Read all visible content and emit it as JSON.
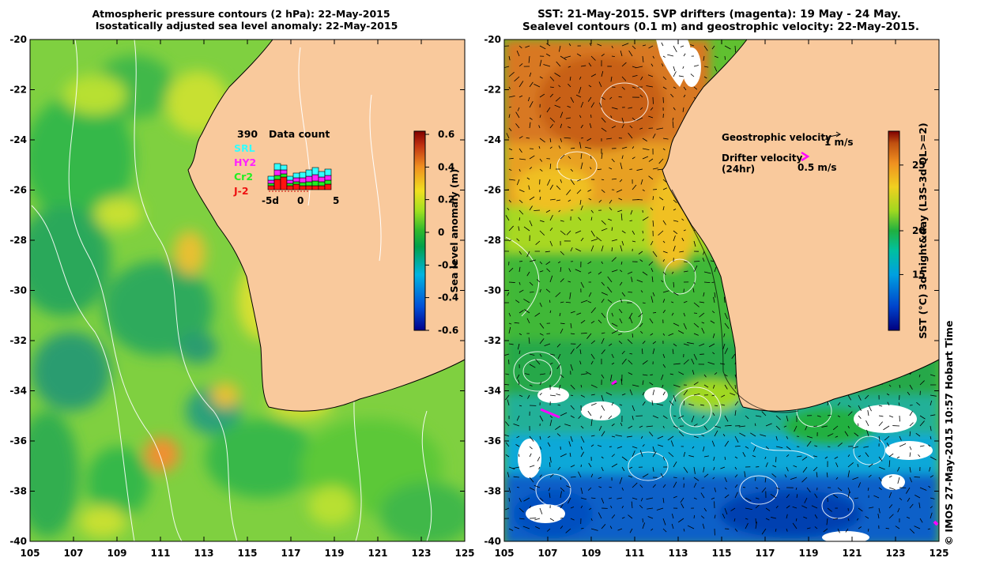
{
  "left_panel": {
    "title_line1": "Atmospheric pressure contours (2 hPa): 22-May-2015",
    "title_line2": "Isostatically adjusted sea level anomaly: 22-May-2015",
    "colorbar_label": "Sea level anomaly (m)",
    "colorbar_ticks": [
      "0.6",
      "0.4",
      "0.2",
      "0",
      "-0.2",
      "-0.4",
      "-0.6"
    ],
    "data_count": {
      "title": "Data count",
      "total": "390",
      "missions": [
        {
          "name": "SRL",
          "color": "#33ffff"
        },
        {
          "name": "HY2",
          "color": "#ff22ff"
        },
        {
          "name": "Cr2",
          "color": "#22ee22"
        },
        {
          "name": "J-2",
          "color": "#ff1111"
        }
      ],
      "x_ticks": [
        "-5d",
        "0",
        "5"
      ]
    }
  },
  "right_panel": {
    "title_line1": "SST: 21-May-2015. SVP drifters (magenta): 19 May - 24 May.",
    "title_line2": "Sealevel contours (0.1 m) and geostrophic velocity: 22-May-2015.",
    "colorbar_label": "SST (°C) 3d night&day (L3S-3d QL>=2)",
    "colorbar_ticks": [
      "25",
      "20",
      "15"
    ],
    "legend": {
      "geo_label": "Geostrophic velocity",
      "geo_scale": "1 m/s",
      "drifter_label": "Drifter velocity",
      "drifter_sub": "(24hr)",
      "drifter_scale": "0.5 m/s"
    }
  },
  "axes": {
    "lon_ticks": [
      "105",
      "107",
      "109",
      "111",
      "113",
      "115",
      "117",
      "119",
      "121",
      "123",
      "125"
    ],
    "lat_ticks": [
      "-20",
      "-22",
      "-24",
      "-26",
      "-28",
      "-30",
      "-32",
      "-34",
      "-36",
      "-38",
      "-40"
    ]
  },
  "credit": "© IMOS 27-May-2015 10:57 Hobart Time",
  "colors": {
    "land": "#f9c99c",
    "sla_colormap": [
      "#00008b",
      "#0050d8",
      "#00b4e0",
      "#00a04a",
      "#2db82d",
      "#a0e020",
      "#f0e020",
      "#f09020",
      "#c03010",
      "#800000"
    ],
    "sst_colormap": [
      "#000080",
      "#0044cc",
      "#00a0e0",
      "#00c0a0",
      "#20b040",
      "#a0d820",
      "#f0d020",
      "#f09020",
      "#c05010",
      "#7f0000"
    ],
    "drifter": "#ff00ff"
  }
}
